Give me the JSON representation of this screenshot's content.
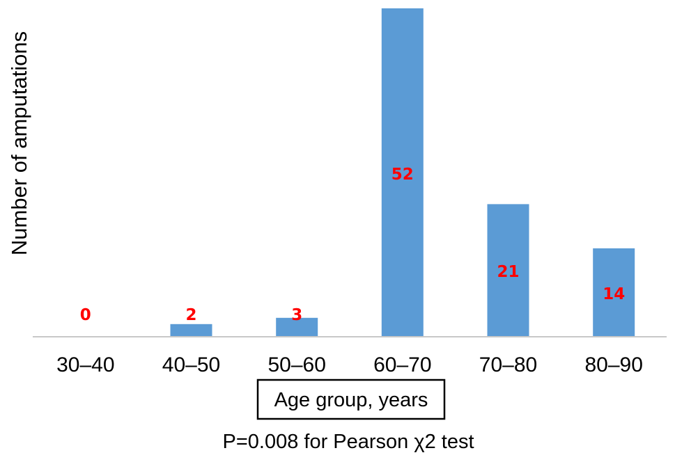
{
  "chart_data": {
    "type": "bar",
    "categories": [
      "30–40",
      "40–50",
      "50–60",
      "60–70",
      "70–80",
      "80–90"
    ],
    "values": [
      0,
      2,
      3,
      52,
      21,
      14
    ],
    "data_labels": [
      "0",
      "2",
      "3",
      "52",
      "21",
      "14"
    ],
    "xlabel": "Age group, years",
    "ylabel": "Number of amputations",
    "ylim": [
      0,
      52
    ],
    "grid": false,
    "legend": "none",
    "annotation": "P=0.008 for Pearson χ2 test",
    "colors": {
      "bar": "#5b9bd5",
      "data_label": "#ff0000",
      "axis": "#c8c8c8"
    }
  }
}
